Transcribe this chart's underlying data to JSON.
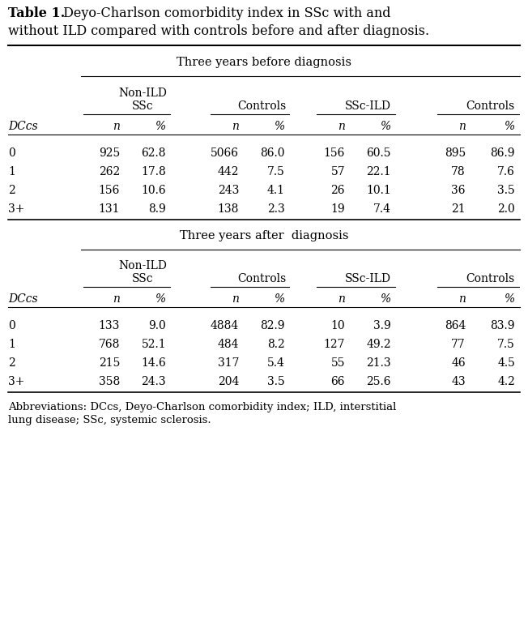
{
  "title_bold": "Table 1.",
  "title_normal": " Deyo-Charlson comorbidity index in SSc with and\nwithout ILD compared with controls before and after diagnosis.",
  "section1_header": "Three years before diagnosis",
  "section2_header": "Three years after  diagnosis",
  "col_headers": [
    "n",
    "%",
    "n",
    "%",
    "n",
    "%",
    "n",
    "%"
  ],
  "row_header": "DCcs",
  "row_labels": [
    "0",
    "1",
    "2",
    "3+"
  ],
  "before_data": [
    [
      "925",
      "62.8",
      "5066",
      "86.0",
      "156",
      "60.5",
      "895",
      "86.9"
    ],
    [
      "262",
      "17.8",
      "442",
      "7.5",
      "57",
      "22.1",
      "78",
      "7.6"
    ],
    [
      "156",
      "10.6",
      "243",
      "4.1",
      "26",
      "10.1",
      "36",
      "3.5"
    ],
    [
      "131",
      "8.9",
      "138",
      "2.3",
      "19",
      "7.4",
      "21",
      "2.0"
    ]
  ],
  "after_data": [
    [
      "133",
      "9.0",
      "4884",
      "82.9",
      "10",
      "3.9",
      "864",
      "83.9"
    ],
    [
      "768",
      "52.1",
      "484",
      "8.2",
      "127",
      "49.2",
      "77",
      "7.5"
    ],
    [
      "215",
      "14.6",
      "317",
      "5.4",
      "55",
      "21.3",
      "46",
      "4.5"
    ],
    [
      "358",
      "24.3",
      "204",
      "3.5",
      "66",
      "25.6",
      "43",
      "4.2"
    ]
  ],
  "footnote_line1": "Abbreviations: DCcs, Deyo-Charlson comorbidity index; ILD, interstitial",
  "footnote_line2": "lung disease; SSc, systemic sclerosis.",
  "bg_color": "#ffffff",
  "text_color": "#000000",
  "font_size": 10.0,
  "title_font_size": 11.5
}
